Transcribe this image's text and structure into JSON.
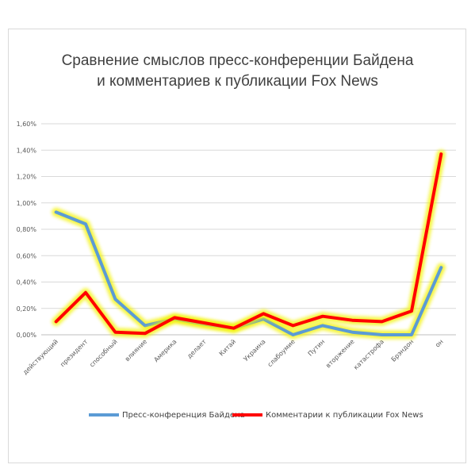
{
  "chart_data": {
    "type": "line",
    "title_lines": [
      "Сравнение смыслов пресс-конференции Байдена",
      "и комментариев к публикации Fox News"
    ],
    "categories": [
      "действующий",
      "президент",
      "способный",
      "влияние",
      "Америка",
      "делает",
      "Китай",
      "Украина",
      "слабоумие",
      "Путин",
      "вторжение",
      "катастрофа",
      "Брэндон",
      "он"
    ],
    "series": [
      {
        "name": "Пресс-конференция  Байдена",
        "color": "#5b9bd5",
        "values": [
          0.93,
          0.84,
          0.27,
          0.07,
          0.12,
          0.08,
          0.05,
          0.12,
          0.0,
          0.07,
          0.02,
          0.0,
          0.0,
          0.51
        ]
      },
      {
        "name": "Комментарии к публикации Fox News",
        "color": "#ff0000",
        "values": [
          0.1,
          0.32,
          0.02,
          0.01,
          0.13,
          0.09,
          0.05,
          0.16,
          0.07,
          0.14,
          0.11,
          0.1,
          0.18,
          1.37
        ]
      }
    ],
    "y_ticks": [
      "0,00%",
      "0,20%",
      "0,40%",
      "0,60%",
      "0,80%",
      "1,00%",
      "1,20%",
      "1,40%",
      "1,60%"
    ],
    "ylim": [
      0,
      1.6
    ],
    "grid": true,
    "legend": "bottom",
    "glow_color": "#f2f200"
  }
}
